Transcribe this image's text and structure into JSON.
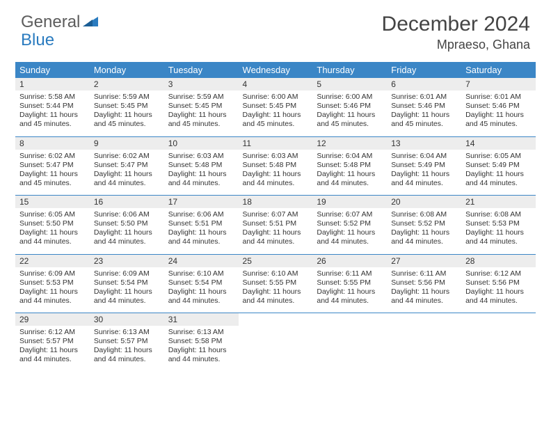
{
  "logo": {
    "text_general": "General",
    "text_blue": "Blue"
  },
  "title": "December 2024",
  "location": "Mpraeso, Ghana",
  "colors": {
    "header_bg": "#3b86c6",
    "header_text": "#ffffff",
    "daynum_bg": "#ededed",
    "row_divider": "#3b86c6",
    "body_text": "#333333",
    "logo_gray": "#5c5c5c",
    "logo_blue": "#2a7bbf"
  },
  "day_headers": [
    "Sunday",
    "Monday",
    "Tuesday",
    "Wednesday",
    "Thursday",
    "Friday",
    "Saturday"
  ],
  "weeks": [
    [
      {
        "n": "1",
        "sr": "5:58 AM",
        "ss": "5:44 PM",
        "dl": "11 hours and 45 minutes."
      },
      {
        "n": "2",
        "sr": "5:59 AM",
        "ss": "5:45 PM",
        "dl": "11 hours and 45 minutes."
      },
      {
        "n": "3",
        "sr": "5:59 AM",
        "ss": "5:45 PM",
        "dl": "11 hours and 45 minutes."
      },
      {
        "n": "4",
        "sr": "6:00 AM",
        "ss": "5:45 PM",
        "dl": "11 hours and 45 minutes."
      },
      {
        "n": "5",
        "sr": "6:00 AM",
        "ss": "5:46 PM",
        "dl": "11 hours and 45 minutes."
      },
      {
        "n": "6",
        "sr": "6:01 AM",
        "ss": "5:46 PM",
        "dl": "11 hours and 45 minutes."
      },
      {
        "n": "7",
        "sr": "6:01 AM",
        "ss": "5:46 PM",
        "dl": "11 hours and 45 minutes."
      }
    ],
    [
      {
        "n": "8",
        "sr": "6:02 AM",
        "ss": "5:47 PM",
        "dl": "11 hours and 45 minutes."
      },
      {
        "n": "9",
        "sr": "6:02 AM",
        "ss": "5:47 PM",
        "dl": "11 hours and 44 minutes."
      },
      {
        "n": "10",
        "sr": "6:03 AM",
        "ss": "5:48 PM",
        "dl": "11 hours and 44 minutes."
      },
      {
        "n": "11",
        "sr": "6:03 AM",
        "ss": "5:48 PM",
        "dl": "11 hours and 44 minutes."
      },
      {
        "n": "12",
        "sr": "6:04 AM",
        "ss": "5:48 PM",
        "dl": "11 hours and 44 minutes."
      },
      {
        "n": "13",
        "sr": "6:04 AM",
        "ss": "5:49 PM",
        "dl": "11 hours and 44 minutes."
      },
      {
        "n": "14",
        "sr": "6:05 AM",
        "ss": "5:49 PM",
        "dl": "11 hours and 44 minutes."
      }
    ],
    [
      {
        "n": "15",
        "sr": "6:05 AM",
        "ss": "5:50 PM",
        "dl": "11 hours and 44 minutes."
      },
      {
        "n": "16",
        "sr": "6:06 AM",
        "ss": "5:50 PM",
        "dl": "11 hours and 44 minutes."
      },
      {
        "n": "17",
        "sr": "6:06 AM",
        "ss": "5:51 PM",
        "dl": "11 hours and 44 minutes."
      },
      {
        "n": "18",
        "sr": "6:07 AM",
        "ss": "5:51 PM",
        "dl": "11 hours and 44 minutes."
      },
      {
        "n": "19",
        "sr": "6:07 AM",
        "ss": "5:52 PM",
        "dl": "11 hours and 44 minutes."
      },
      {
        "n": "20",
        "sr": "6:08 AM",
        "ss": "5:52 PM",
        "dl": "11 hours and 44 minutes."
      },
      {
        "n": "21",
        "sr": "6:08 AM",
        "ss": "5:53 PM",
        "dl": "11 hours and 44 minutes."
      }
    ],
    [
      {
        "n": "22",
        "sr": "6:09 AM",
        "ss": "5:53 PM",
        "dl": "11 hours and 44 minutes."
      },
      {
        "n": "23",
        "sr": "6:09 AM",
        "ss": "5:54 PM",
        "dl": "11 hours and 44 minutes."
      },
      {
        "n": "24",
        "sr": "6:10 AM",
        "ss": "5:54 PM",
        "dl": "11 hours and 44 minutes."
      },
      {
        "n": "25",
        "sr": "6:10 AM",
        "ss": "5:55 PM",
        "dl": "11 hours and 44 minutes."
      },
      {
        "n": "26",
        "sr": "6:11 AM",
        "ss": "5:55 PM",
        "dl": "11 hours and 44 minutes."
      },
      {
        "n": "27",
        "sr": "6:11 AM",
        "ss": "5:56 PM",
        "dl": "11 hours and 44 minutes."
      },
      {
        "n": "28",
        "sr": "6:12 AM",
        "ss": "5:56 PM",
        "dl": "11 hours and 44 minutes."
      }
    ],
    [
      {
        "n": "29",
        "sr": "6:12 AM",
        "ss": "5:57 PM",
        "dl": "11 hours and 44 minutes."
      },
      {
        "n": "30",
        "sr": "6:13 AM",
        "ss": "5:57 PM",
        "dl": "11 hours and 44 minutes."
      },
      {
        "n": "31",
        "sr": "6:13 AM",
        "ss": "5:58 PM",
        "dl": "11 hours and 44 minutes."
      },
      null,
      null,
      null,
      null
    ]
  ],
  "labels": {
    "sunrise": "Sunrise:",
    "sunset": "Sunset:",
    "daylight": "Daylight:"
  }
}
